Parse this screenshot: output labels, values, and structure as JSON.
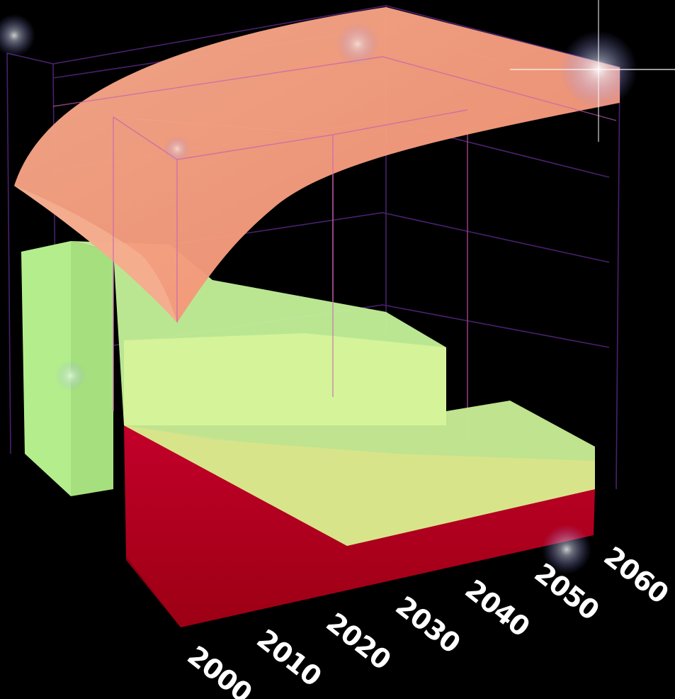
{
  "chart_data": {
    "type": "area",
    "title": "",
    "xlabel": "",
    "ylabel": "",
    "x_ticks": [
      "2000",
      "2010",
      "2020",
      "2030",
      "2040",
      "2050",
      "2060"
    ],
    "x_range": [
      2000,
      2060
    ],
    "grid": true,
    "legend": "none",
    "series": [
      {
        "color": "#f49a7c",
        "shape": "curved surface"
      },
      {
        "color": "#b4ee8c",
        "shape": "stepped block"
      },
      {
        "color": "#b3001e",
        "shape": "stepped block"
      }
    ]
  }
}
